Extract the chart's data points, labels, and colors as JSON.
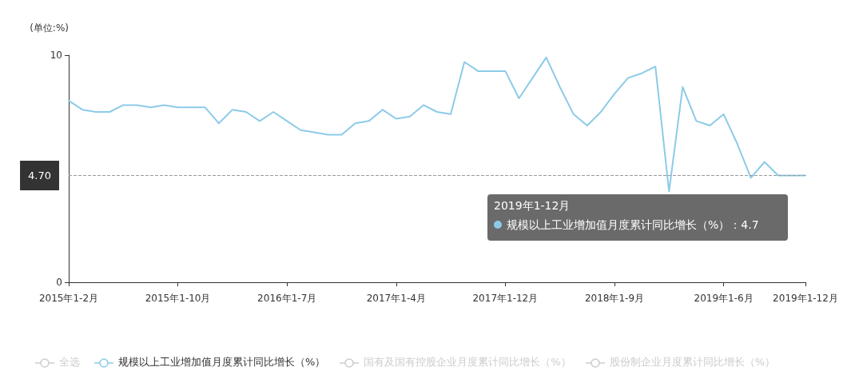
{
  "chart_data": {
    "type": "line",
    "ylabel": "(单位:%)",
    "categories": [
      "2015年1-2月",
      null,
      null,
      null,
      null,
      null,
      null,
      null,
      "2015年1-10月",
      null,
      null,
      null,
      null,
      null,
      null,
      null,
      "2016年1-7月",
      null,
      null,
      null,
      null,
      null,
      null,
      null,
      "2017年1-4月",
      null,
      null,
      null,
      null,
      null,
      null,
      null,
      "2017年1-12月",
      null,
      null,
      null,
      null,
      null,
      null,
      null,
      "2018年1-9月",
      null,
      null,
      null,
      null,
      null,
      null,
      null,
      "2019年1-6月",
      null,
      null,
      null,
      null,
      null,
      "2019年1-12月"
    ],
    "series": [
      {
        "name": "规模以上工业增加值月度累计同比增长（%）",
        "color": "#8ccbe8",
        "values": [
          8.0,
          7.6,
          7.5,
          7.5,
          7.8,
          7.8,
          7.7,
          7.8,
          7.7,
          7.7,
          7.7,
          7.0,
          7.6,
          7.5,
          7.1,
          7.5,
          7.1,
          6.7,
          6.6,
          6.5,
          6.5,
          7.0,
          7.1,
          7.6,
          7.2,
          7.3,
          7.8,
          7.5,
          7.4,
          9.7,
          9.3,
          9.3,
          9.3,
          8.1,
          9.0,
          9.9,
          8.6,
          7.4,
          6.9,
          7.5,
          8.3,
          9.0,
          9.2,
          9.5,
          4.0,
          8.6,
          7.1,
          6.9,
          7.4,
          6.1,
          4.6,
          5.3,
          4.7,
          4.7,
          4.7
        ]
      }
    ],
    "ylim": [
      0,
      10
    ],
    "yticks": [
      0,
      10
    ],
    "legend": "bottom",
    "marker": "none",
    "line_style": "solid",
    "ref_lines": [
      {
        "axis": "y",
        "value": 4.7,
        "label": "4.70"
      }
    ],
    "annotations": [
      "全选",
      "国有及国有控股企业月度累计同比增长（%）",
      "股份制企业月度累计同比增长（%）",
      "2019年1-12月",
      "规模以上工业增加值月度累计同比增长（%）：4.7"
    ]
  }
}
